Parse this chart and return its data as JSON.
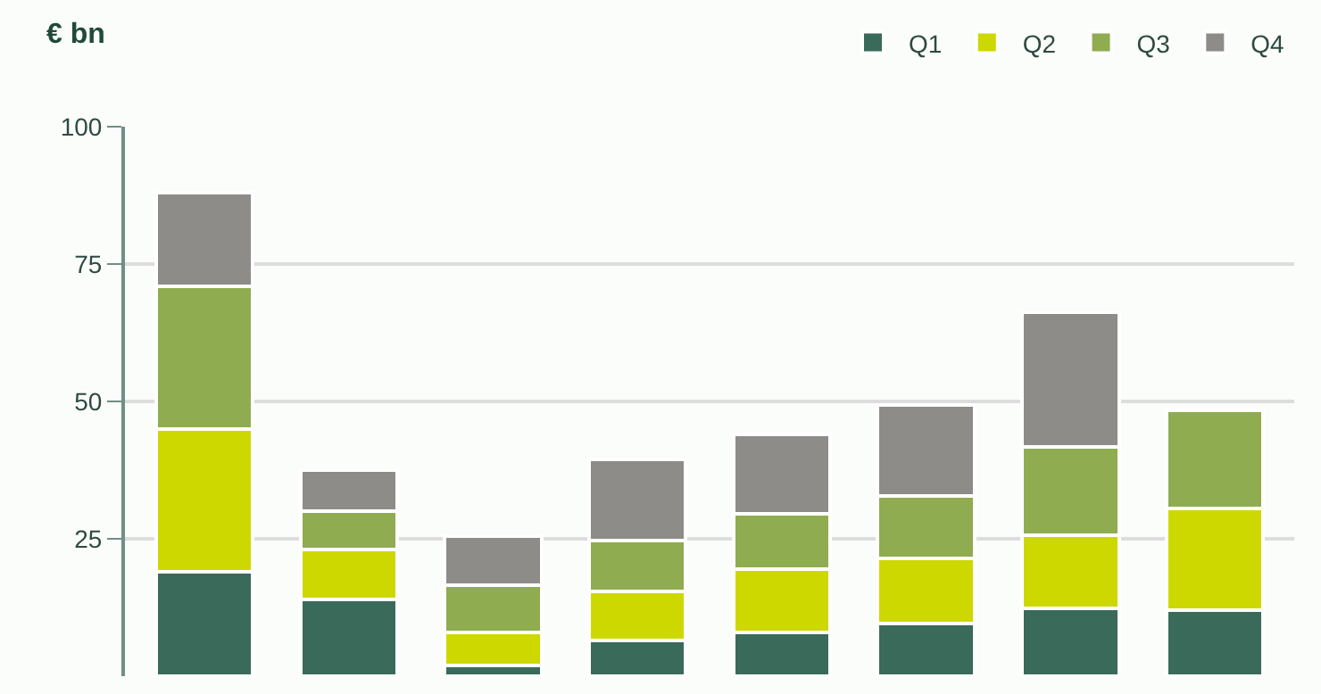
{
  "chart_data": {
    "type": "bar",
    "stacked": true,
    "ylabel": "€ bn",
    "categories": [
      null,
      null,
      null,
      null,
      null,
      null,
      null,
      null
    ],
    "series": [
      {
        "name": "Q1",
        "color": "#3a6a5a",
        "values": [
          19,
          14,
          2,
          6.5,
          8,
          9.5,
          12.3,
          12
        ]
      },
      {
        "name": "Q2",
        "color": "#cdd800",
        "values": [
          26,
          9,
          6,
          9,
          11.5,
          12,
          13.3,
          18.6
        ]
      },
      {
        "name": "Q3",
        "color": "#8fac50",
        "values": [
          26,
          7,
          8.5,
          9.2,
          10,
          11.3,
          16.2,
          17.7
        ]
      },
      {
        "name": "Q4",
        "color": "#8e8c88",
        "values": [
          17,
          7.5,
          9,
          14.7,
          14.5,
          16.5,
          24.5,
          null
        ]
      }
    ],
    "ylim": [
      0,
      100
    ],
    "yticks": [
      25,
      50,
      75,
      100
    ],
    "grid": "y",
    "legend": "top right"
  }
}
